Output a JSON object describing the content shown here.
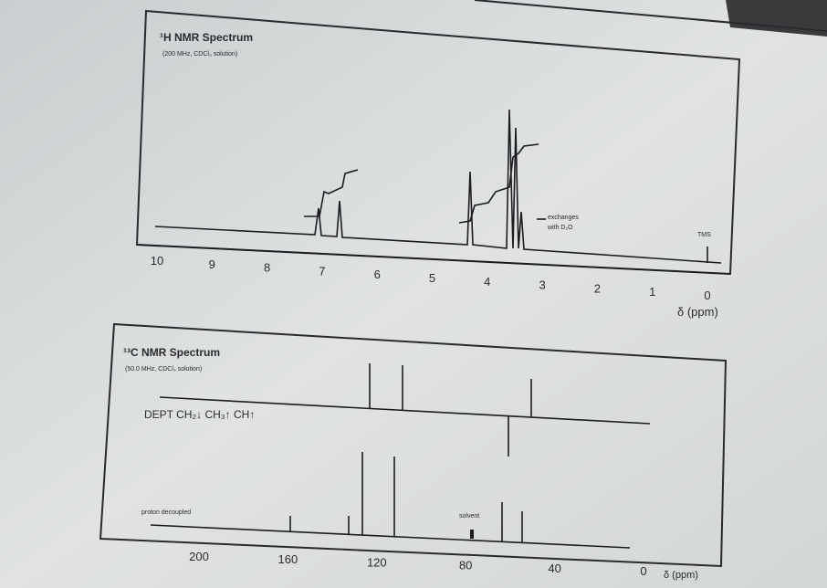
{
  "h_spectrum": {
    "title": "¹H NMR Spectrum",
    "subtitle": "(200 MHz, CDCl₃ solution)",
    "annotation": [
      "exchanges",
      "with D₂O"
    ],
    "reference": "TMS",
    "axis_labels": [
      "10",
      "9",
      "8",
      "7",
      "6",
      "5",
      "4",
      "3",
      "2",
      "1",
      "0"
    ],
    "axis_unit": "δ (ppm)"
  },
  "c_spectrum": {
    "title": "¹³C NMR Spectrum",
    "subtitle": "(50.0 MHz, CDCl₃ solution)",
    "dept_label": "DEPT  CH₂↓  CH₃↑  CH↑",
    "decoupled_label": "proton decoupled",
    "solvent_label": "solvent",
    "axis_labels": [
      "200",
      "160",
      "120",
      "80",
      "40",
      "0"
    ],
    "axis_unit": "δ (ppm)"
  }
}
